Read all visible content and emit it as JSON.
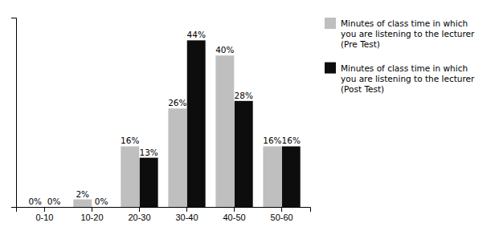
{
  "chart_data": {
    "type": "bar",
    "categories": [
      "0-10",
      "10-20",
      "20-30",
      "30-40",
      "40-50",
      "50-60"
    ],
    "series": [
      {
        "name": "Minutes of class time in which\nyou are listening to the lecturer\n(Pre Test)",
        "color": "#bfbfbf",
        "values": [
          0,
          2,
          16,
          26,
          40,
          16
        ],
        "value_labels": [
          "0%",
          "2%",
          "16%",
          "26%",
          "40%",
          "16%"
        ]
      },
      {
        "name": "Minutes of class time in which\nyou are listening to the lecturer\n(Post Test)",
        "color": "#0d0d0d",
        "values": [
          0,
          0,
          13,
          44,
          28,
          16
        ],
        "value_labels": [
          "0%",
          "0%",
          "13%",
          "44%",
          "28%",
          "16%"
        ]
      }
    ],
    "ylim": [
      0,
      50
    ],
    "data_labels": true,
    "tick_labels": "x",
    "legend": "right",
    "grid": false
  }
}
